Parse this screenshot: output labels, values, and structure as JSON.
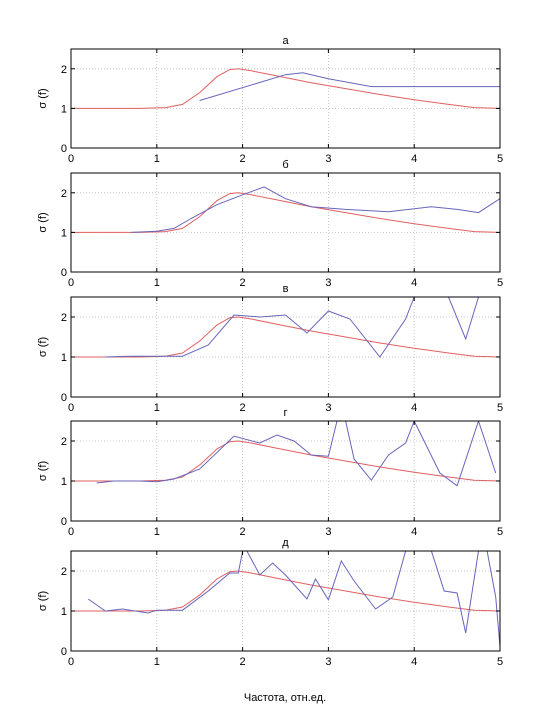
{
  "figure": {
    "xlabel": "Частота, отн.ед."
  },
  "colors": {
    "reference": "#e06060",
    "measured": "#6666bb",
    "grid": "#bbbbbb",
    "frame": "#000000"
  },
  "chart_data": [
    {
      "type": "line",
      "title": "а",
      "xlabel": "",
      "ylabel": "σ (f)",
      "xlim": [
        0,
        5
      ],
      "ylim": [
        0,
        2.5
      ],
      "xticks": [
        0,
        1,
        2,
        3,
        4,
        5
      ],
      "yticks": [
        0,
        1,
        2
      ],
      "grid": true,
      "series": [
        {
          "color": "#e06060",
          "x": [
            0,
            0.4,
            0.8,
            1.1,
            1.3,
            1.5,
            1.7,
            1.85,
            1.95,
            2.1,
            2.4,
            2.8,
            3.2,
            3.6,
            4.0,
            4.4,
            4.7,
            5.0
          ],
          "y": [
            1.0,
            1.0,
            1.0,
            1.02,
            1.1,
            1.4,
            1.8,
            1.98,
            2.0,
            1.95,
            1.82,
            1.65,
            1.5,
            1.35,
            1.22,
            1.1,
            1.02,
            1.0
          ]
        },
        {
          "color": "#6666bb",
          "x": [
            1.5,
            2.5,
            2.7,
            3.0,
            3.5,
            3.9,
            4.5,
            5.0
          ],
          "y": [
            1.2,
            1.85,
            1.9,
            1.75,
            1.55,
            1.55,
            1.55,
            1.55
          ]
        }
      ]
    },
    {
      "type": "line",
      "title": "б",
      "xlabel": "",
      "ylabel": "σ (f)",
      "xlim": [
        0,
        5
      ],
      "ylim": [
        0,
        2.5
      ],
      "xticks": [
        0,
        1,
        2,
        3,
        4,
        5
      ],
      "yticks": [
        0,
        1,
        2
      ],
      "grid": true,
      "series": [
        {
          "color": "#e06060",
          "x": [
            0,
            0.4,
            0.8,
            1.1,
            1.3,
            1.5,
            1.7,
            1.85,
            1.95,
            2.1,
            2.4,
            2.8,
            3.2,
            3.6,
            4.0,
            4.4,
            4.7,
            5.0
          ],
          "y": [
            1.0,
            1.0,
            1.0,
            1.02,
            1.1,
            1.4,
            1.8,
            1.98,
            2.0,
            1.95,
            1.82,
            1.65,
            1.5,
            1.35,
            1.22,
            1.1,
            1.02,
            1.0
          ]
        },
        {
          "color": "#6666bb",
          "x": [
            0.7,
            1.0,
            1.2,
            1.4,
            1.7,
            2.0,
            2.25,
            2.5,
            2.8,
            3.2,
            3.7,
            4.2,
            4.5,
            4.75,
            5.0
          ],
          "y": [
            1.0,
            1.03,
            1.1,
            1.35,
            1.7,
            1.95,
            2.15,
            1.85,
            1.65,
            1.58,
            1.52,
            1.65,
            1.58,
            1.5,
            1.85
          ]
        }
      ]
    },
    {
      "type": "line",
      "title": "в",
      "xlabel": "",
      "ylabel": "σ (f)",
      "xlim": [
        0,
        5
      ],
      "ylim": [
        0,
        2.5
      ],
      "xticks": [
        0,
        1,
        2,
        3,
        4,
        5
      ],
      "yticks": [
        0,
        1,
        2
      ],
      "grid": true,
      "series": [
        {
          "color": "#e06060",
          "x": [
            0,
            0.4,
            0.8,
            1.1,
            1.3,
            1.5,
            1.7,
            1.85,
            1.95,
            2.1,
            2.4,
            2.8,
            3.2,
            3.6,
            4.0,
            4.4,
            4.7,
            5.0
          ],
          "y": [
            1.0,
            1.0,
            1.0,
            1.02,
            1.1,
            1.4,
            1.8,
            1.98,
            2.0,
            1.95,
            1.82,
            1.65,
            1.5,
            1.35,
            1.22,
            1.1,
            1.02,
            1.0
          ]
        },
        {
          "color": "#6666bb",
          "x": [
            0.4,
            0.7,
            1.0,
            1.3,
            1.6,
            1.9,
            2.2,
            2.5,
            2.75,
            3.0,
            3.25,
            3.6,
            3.9,
            4.0,
            4.4,
            4.6,
            4.75
          ],
          "y": [
            1.0,
            1.02,
            1.02,
            1.02,
            1.3,
            2.05,
            2.0,
            2.05,
            1.6,
            2.15,
            1.95,
            1.0,
            1.95,
            2.5,
            2.5,
            1.45,
            2.5
          ]
        }
      ]
    },
    {
      "type": "line",
      "title": "г",
      "xlabel": "",
      "ylabel": "σ (f)",
      "xlim": [
        0,
        5
      ],
      "ylim": [
        0,
        2.5
      ],
      "xticks": [
        0,
        1,
        2,
        3,
        4,
        5
      ],
      "yticks": [
        0,
        1,
        2
      ],
      "grid": true,
      "series": [
        {
          "color": "#e06060",
          "x": [
            0,
            0.4,
            0.8,
            1.1,
            1.3,
            1.5,
            1.7,
            1.85,
            1.95,
            2.1,
            2.4,
            2.8,
            3.2,
            3.6,
            4.0,
            4.4,
            4.7,
            5.0
          ],
          "y": [
            1.0,
            1.0,
            1.0,
            1.02,
            1.1,
            1.4,
            1.8,
            1.98,
            2.0,
            1.95,
            1.82,
            1.65,
            1.5,
            1.35,
            1.22,
            1.1,
            1.02,
            1.0
          ]
        },
        {
          "color": "#6666bb",
          "x": [
            0.3,
            0.5,
            0.8,
            1.0,
            1.2,
            1.5,
            1.9,
            2.2,
            2.4,
            2.6,
            2.8,
            3.0,
            3.1,
            3.2,
            3.3,
            3.5,
            3.7,
            3.9,
            4.0,
            4.3,
            4.5,
            4.75,
            4.95
          ],
          "y": [
            0.95,
            1.0,
            1.0,
            0.98,
            1.05,
            1.3,
            2.12,
            1.95,
            2.15,
            2.0,
            1.65,
            1.62,
            2.5,
            2.5,
            1.55,
            1.02,
            1.65,
            1.95,
            2.5,
            1.2,
            0.88,
            2.5,
            1.2
          ]
        }
      ]
    },
    {
      "type": "line",
      "title": "д",
      "xlabel": "Частота, отн.ед.",
      "ylabel": "σ (f)",
      "xlim": [
        0,
        5
      ],
      "ylim": [
        0,
        2.5
      ],
      "xticks": [
        0,
        1,
        2,
        3,
        4,
        5
      ],
      "yticks": [
        0,
        1,
        2
      ],
      "grid": true,
      "series": [
        {
          "color": "#e06060",
          "x": [
            0,
            0.4,
            0.8,
            1.1,
            1.3,
            1.5,
            1.7,
            1.85,
            1.95,
            2.1,
            2.4,
            2.8,
            3.2,
            3.6,
            4.0,
            4.4,
            4.7,
            5.0
          ],
          "y": [
            1.0,
            1.0,
            1.0,
            1.02,
            1.1,
            1.4,
            1.8,
            1.98,
            2.0,
            1.95,
            1.82,
            1.65,
            1.5,
            1.35,
            1.22,
            1.1,
            1.02,
            1.0
          ]
        },
        {
          "color": "#6666bb",
          "x": [
            0.2,
            0.4,
            0.6,
            0.9,
            1.0,
            1.3,
            1.6,
            1.85,
            1.95,
            2.0,
            2.05,
            2.2,
            2.35,
            2.5,
            2.75,
            2.85,
            3.0,
            3.15,
            3.3,
            3.55,
            3.75,
            3.9,
            4.2,
            4.35,
            4.5,
            4.6,
            4.75,
            4.85,
            4.95,
            5.0
          ],
          "y": [
            1.3,
            1.0,
            1.05,
            0.95,
            1.02,
            1.02,
            1.5,
            1.95,
            1.95,
            2.5,
            2.5,
            1.9,
            2.2,
            1.9,
            1.3,
            1.8,
            1.28,
            2.25,
            1.75,
            1.05,
            1.35,
            2.5,
            2.5,
            1.5,
            1.45,
            0.45,
            2.5,
            2.5,
            1.35,
            0.1
          ]
        }
      ]
    }
  ]
}
